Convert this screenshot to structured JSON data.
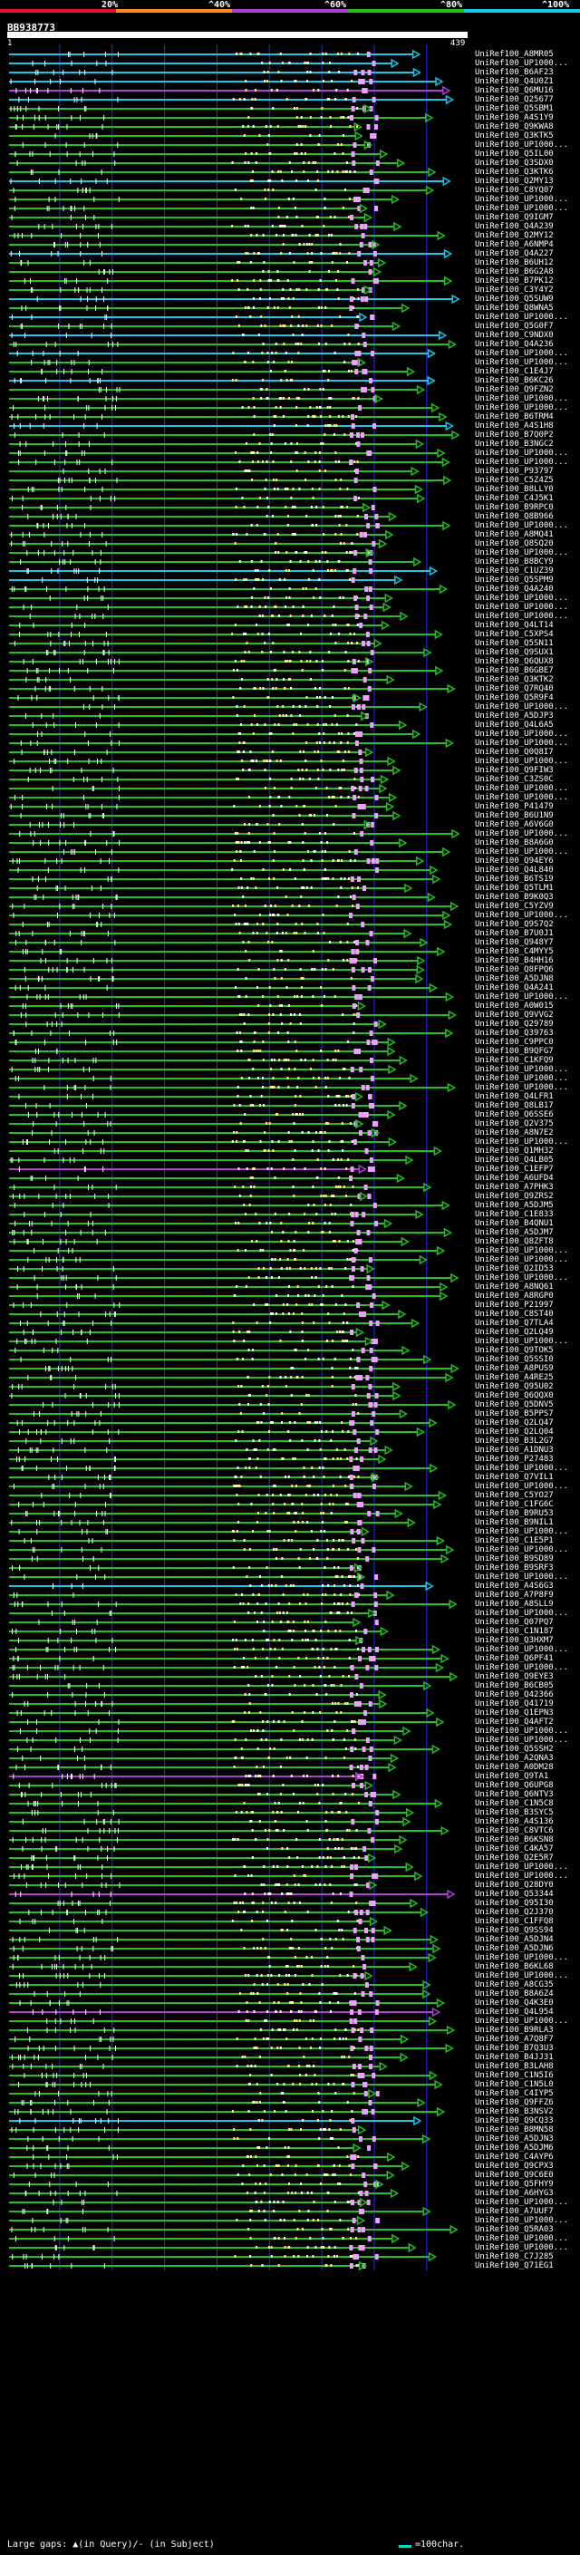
{
  "colors": {
    "background": "#000000",
    "bin1": "#e8102a",
    "bin2": "#ff8c1a",
    "bin3": "#b040d0",
    "bin4": "#22c020",
    "bin5": "#18c8e8",
    "pink": "#f0a0ff",
    "white": "#ffffff"
  },
  "header": {
    "pct_labels": [
      "20%",
      "^40%",
      "^60%",
      "^80%",
      "^100%"
    ],
    "query_id": "BB938773",
    "query_start": "1",
    "query_end": "439"
  },
  "chart_data": {
    "type": "alignment-overview",
    "query_length": 439,
    "hits": [
      {
        "id": "UniRef100_A8MR05",
        "c": 4
      },
      {
        "id": "UniRef100_UP1000...",
        "c": 4
      },
      {
        "id": "UniRef100_B6AF23",
        "c": 4
      },
      {
        "id": "UniRef100_Q4U0Z1",
        "c": 4
      },
      {
        "id": "UniRef100_Q6MU16",
        "c": 5
      },
      {
        "id": "UniRef100_Q25677",
        "c": 4
      },
      {
        "id": "UniRef100_Q5SBM1",
        "c": 3
      },
      {
        "id": "UniRef100_A4S1Y9",
        "c": 3
      },
      {
        "id": "UniRef100_Q9KWA8",
        "c": 3
      },
      {
        "id": "UniRef100_Q3KTK5",
        "c": 3
      },
      {
        "id": "UniRef100_UP1000...",
        "c": 3
      },
      {
        "id": "UniRef100_Q5IL00",
        "c": 3
      },
      {
        "id": "UniRef100_Q3SDX0",
        "c": 3
      },
      {
        "id": "UniRef100_Q3KTK6",
        "c": 3
      },
      {
        "id": "UniRef100_Q2MY13",
        "c": 4
      },
      {
        "id": "UniRef100_C8YQ07",
        "c": 3
      },
      {
        "id": "UniRef100_UP1000...",
        "c": 3
      },
      {
        "id": "UniRef100_UP1000...",
        "c": 3
      },
      {
        "id": "UniRef100_Q9IGM7",
        "c": 3
      },
      {
        "id": "UniRef100_Q4A239",
        "c": 3
      },
      {
        "id": "UniRef100_Q2MY12",
        "c": 3
      },
      {
        "id": "UniRef100_A6NMP4",
        "c": 3
      },
      {
        "id": "UniRef100_Q4A227",
        "c": 4
      },
      {
        "id": "UniRef100_B6UH12",
        "c": 3
      },
      {
        "id": "UniRef100_B6G2A8",
        "c": 3
      },
      {
        "id": "UniRef100_B7PK12",
        "c": 3
      },
      {
        "id": "UniRef100_C3Y4Y2",
        "c": 3
      },
      {
        "id": "UniRef100_Q5SUW9",
        "c": 4
      },
      {
        "id": "UniRef100_Q8WNA5",
        "c": 3
      },
      {
        "id": "UniRef100_UP1000...",
        "c": 4
      },
      {
        "id": "UniRef100_Q5G0F7",
        "c": 3
      },
      {
        "id": "UniRef100_C9NDX0",
        "c": 4
      },
      {
        "id": "UniRef100_Q4A236",
        "c": 3
      },
      {
        "id": "UniRef100_UP1000...",
        "c": 4
      },
      {
        "id": "UniRef100_UP1000...",
        "c": 3
      },
      {
        "id": "UniRef100_C1E4J7",
        "c": 3
      },
      {
        "id": "UniRef100_B6KC26",
        "c": 4
      },
      {
        "id": "UniRef100_Q9FZN2",
        "c": 3
      },
      {
        "id": "UniRef100_UP1000...",
        "c": 3
      },
      {
        "id": "UniRef100_UP1000...",
        "c": 3
      },
      {
        "id": "UniRef100_B6TRM4",
        "c": 3
      },
      {
        "id": "UniRef100_A4S1H8",
        "c": 4
      },
      {
        "id": "UniRef100_B7Q0P2",
        "c": 3
      },
      {
        "id": "UniRef100_B3NGC2",
        "c": 3
      },
      {
        "id": "UniRef100_UP1000...",
        "c": 3
      },
      {
        "id": "UniRef100_UP1000...",
        "c": 3
      },
      {
        "id": "UniRef100_P93797",
        "c": 3
      },
      {
        "id": "UniRef100_C5Z4Z5",
        "c": 3
      },
      {
        "id": "UniRef100_B8LLY0",
        "c": 3
      },
      {
        "id": "UniRef100_C4J5K1",
        "c": 3
      },
      {
        "id": "UniRef100_B9RPC0",
        "c": 3
      },
      {
        "id": "UniRef100_Q8B966",
        "c": 3
      },
      {
        "id": "UniRef100_UP1000...",
        "c": 3
      },
      {
        "id": "UniRef100_A8MQ41",
        "c": 3
      },
      {
        "id": "UniRef100_Q8SQ20",
        "c": 3
      },
      {
        "id": "UniRef100_UP1000...",
        "c": 3
      },
      {
        "id": "UniRef100_B8BCY9",
        "c": 3
      },
      {
        "id": "UniRef100_C1UZ39",
        "c": 4
      },
      {
        "id": "UniRef100_Q5SPM9",
        "c": 4
      },
      {
        "id": "UniRef100_Q4A240",
        "c": 3
      },
      {
        "id": "UniRef100_UP1000...",
        "c": 3
      },
      {
        "id": "UniRef100_UP1000...",
        "c": 3
      },
      {
        "id": "UniRef100_UP1000...",
        "c": 3
      },
      {
        "id": "UniRef100_Q4LT14",
        "c": 3
      },
      {
        "id": "UniRef100_C5XPS4",
        "c": 3
      },
      {
        "id": "UniRef100_Q5SN11",
        "c": 3
      },
      {
        "id": "UniRef100_Q9SUX1",
        "c": 3
      },
      {
        "id": "UniRef100_Q6QUX8",
        "c": 3
      },
      {
        "id": "UniRef100_B6GBE7",
        "c": 3
      },
      {
        "id": "UniRef100_Q3KTK2",
        "c": 3
      },
      {
        "id": "UniRef100_Q7RQ40",
        "c": 3
      },
      {
        "id": "UniRef100_Q5R9F4",
        "c": 3
      },
      {
        "id": "UniRef100_UP1000...",
        "c": 3
      },
      {
        "id": "UniRef100_A5DJP3",
        "c": 3
      },
      {
        "id": "UniRef100_Q4L6A5",
        "c": 3
      },
      {
        "id": "UniRef100_UP1000...",
        "c": 3
      },
      {
        "id": "UniRef100_UP1000...",
        "c": 3
      },
      {
        "id": "UniRef100_Q0Q8I7",
        "c": 3
      },
      {
        "id": "UniRef100_UP1000...",
        "c": 3
      },
      {
        "id": "UniRef100_Q9FIW3",
        "c": 3
      },
      {
        "id": "UniRef100_C3ZS0C",
        "c": 3
      },
      {
        "id": "UniRef100_UP1000...",
        "c": 3
      },
      {
        "id": "UniRef100_UP1000...",
        "c": 3
      },
      {
        "id": "UniRef100_P41479",
        "c": 3
      },
      {
        "id": "UniRef100_B6U1N9",
        "c": 3
      },
      {
        "id": "UniRef100_A6V6G0",
        "c": 3
      },
      {
        "id": "UniRef100_UP1000...",
        "c": 3
      },
      {
        "id": "UniRef100_B8A6G0",
        "c": 3
      },
      {
        "id": "UniRef100_UP1000...",
        "c": 3
      },
      {
        "id": "UniRef100_Q94EY6",
        "c": 3
      },
      {
        "id": "UniRef100_Q4L840",
        "c": 3
      },
      {
        "id": "UniRef100_B6TS19",
        "c": 3
      },
      {
        "id": "UniRef100_Q5TLM1",
        "c": 3
      },
      {
        "id": "UniRef100_B9K0Q3",
        "c": 3
      },
      {
        "id": "UniRef100_C5YZV9",
        "c": 3
      },
      {
        "id": "UniRef100_UP1000...",
        "c": 3
      },
      {
        "id": "UniRef100_Q9S7Q2",
        "c": 3
      },
      {
        "id": "UniRef100_B7U0J1",
        "c": 3
      },
      {
        "id": "UniRef100_Q948Y7",
        "c": 3
      },
      {
        "id": "UniRef100_C4MYY5",
        "c": 3
      },
      {
        "id": "UniRef100_B4HH16",
        "c": 3
      },
      {
        "id": "UniRef100_Q8FPQ6",
        "c": 3
      },
      {
        "id": "UniRef100_A5DJN8",
        "c": 3
      },
      {
        "id": "UniRef100_Q4A241",
        "c": 3
      },
      {
        "id": "UniRef100_UP1000...",
        "c": 3
      },
      {
        "id": "UniRef100_A0W015",
        "c": 3
      },
      {
        "id": "UniRef100_Q9VVG2",
        "c": 3
      },
      {
        "id": "UniRef100_Q29789",
        "c": 3
      },
      {
        "id": "UniRef100_Q39763",
        "c": 3
      },
      {
        "id": "UniRef100_C9PPC0",
        "c": 3
      },
      {
        "id": "UniRef100_B9QFG7",
        "c": 3
      },
      {
        "id": "UniRef100_C1KFQ9",
        "c": 3
      },
      {
        "id": "UniRef100_UP1000...",
        "c": 3
      },
      {
        "id": "UniRef100_UP1000...",
        "c": 3
      },
      {
        "id": "UniRef100_UP1000...",
        "c": 3
      },
      {
        "id": "UniRef100_Q4LFR1",
        "c": 3
      },
      {
        "id": "UniRef100_Q8LB17",
        "c": 3
      },
      {
        "id": "UniRef100_Q6SSE6",
        "c": 3
      },
      {
        "id": "UniRef100_Q2V375",
        "c": 3
      },
      {
        "id": "UniRef100_A8N7E2",
        "c": 3
      },
      {
        "id": "UniRef100_UP1000...",
        "c": 3
      },
      {
        "id": "UniRef100_Q1MH32",
        "c": 3
      },
      {
        "id": "UniRef100_Q4LB05",
        "c": 3
      },
      {
        "id": "UniRef100_C1EFP7",
        "c": 2
      },
      {
        "id": "UniRef100_A6UFD4",
        "c": 3
      },
      {
        "id": "UniRef100_A7PHK3",
        "c": 3
      },
      {
        "id": "UniRef100_Q9ZRS2",
        "c": 3
      },
      {
        "id": "UniRef100_A5DJM5",
        "c": 3
      },
      {
        "id": "UniRef100_C1E833",
        "c": 3
      },
      {
        "id": "UniRef100_B4QNU1",
        "c": 3
      },
      {
        "id": "UniRef100_A5DJM7",
        "c": 3
      },
      {
        "id": "UniRef100_Q8ZFT8",
        "c": 3
      },
      {
        "id": "UniRef100_UP1000...",
        "c": 3
      },
      {
        "id": "UniRef100_UP1000...",
        "c": 3
      },
      {
        "id": "UniRef100_Q2ID53",
        "c": 3
      },
      {
        "id": "UniRef100_UP1000...",
        "c": 3
      },
      {
        "id": "UniRef100_A8NQ61",
        "c": 3
      },
      {
        "id": "UniRef100_A8RGP0",
        "c": 3
      },
      {
        "id": "UniRef100_P21997",
        "c": 3
      },
      {
        "id": "UniRef100_C8ST40",
        "c": 3
      },
      {
        "id": "UniRef100_Q7TLA4",
        "c": 3
      },
      {
        "id": "UniRef100_Q2LQ49",
        "c": 3
      },
      {
        "id": "UniRef100_UP1000...",
        "c": 3
      },
      {
        "id": "UniRef100_Q9TOK5",
        "c": 3
      },
      {
        "id": "UniRef100_Q5SSI0",
        "c": 3
      },
      {
        "id": "UniRef100_A8PUS9",
        "c": 3
      },
      {
        "id": "UniRef100_A4RE25",
        "c": 3
      },
      {
        "id": "UniRef100_Q95U02",
        "c": 3
      },
      {
        "id": "UniRef100_Q6QQX0",
        "c": 3
      },
      {
        "id": "UniRef100_Q5DNV5",
        "c": 3
      },
      {
        "id": "UniRef100_B5PPS7",
        "c": 3
      },
      {
        "id": "UniRef100_Q2LQ47",
        "c": 3
      },
      {
        "id": "UniRef100_Q2LQ04",
        "c": 3
      },
      {
        "id": "UniRef100_B3L2G7",
        "c": 3
      },
      {
        "id": "UniRef100_A1DNU3",
        "c": 3
      },
      {
        "id": "UniRef100_P27483",
        "c": 3
      },
      {
        "id": "UniRef100_UP1000...",
        "c": 3
      },
      {
        "id": "UniRef100_Q7VIL1",
        "c": 3
      },
      {
        "id": "UniRef100_UP1000...",
        "c": 3
      },
      {
        "id": "UniRef100_C5YO27",
        "c": 3
      },
      {
        "id": "UniRef100_C1FG6C",
        "c": 3
      },
      {
        "id": "UniRef100_B9RU53",
        "c": 3
      },
      {
        "id": "UniRef100_B9NIL1",
        "c": 3
      },
      {
        "id": "UniRef100_UP1000...",
        "c": 3
      },
      {
        "id": "UniRef100_C1E5P1",
        "c": 3
      },
      {
        "id": "UniRef100_UP1000...",
        "c": 3
      },
      {
        "id": "UniRef100_B9SD89",
        "c": 3
      },
      {
        "id": "UniRef100_B9SRF3",
        "c": 3
      },
      {
        "id": "UniRef100_UP1000...",
        "c": 3
      },
      {
        "id": "UniRef100_A4S6G3",
        "c": 4
      },
      {
        "id": "UniRef100_A7P8F9",
        "c": 3
      },
      {
        "id": "UniRef100_A8SLL9",
        "c": 3
      },
      {
        "id": "UniRef100_UP1000...",
        "c": 3
      },
      {
        "id": "UniRef100_Q07PQ7",
        "c": 3
      },
      {
        "id": "UniRef100_C1N187",
        "c": 3
      },
      {
        "id": "UniRef100_Q3HXM7",
        "c": 3
      },
      {
        "id": "UniRef100_UP1000...",
        "c": 3
      },
      {
        "id": "UniRef100_Q6PF41",
        "c": 3
      },
      {
        "id": "UniRef100_UP1000...",
        "c": 3
      },
      {
        "id": "UniRef100_Q9EYE3",
        "c": 3
      },
      {
        "id": "UniRef100_B6CB05",
        "c": 3
      },
      {
        "id": "UniRef100_Q42366",
        "c": 3
      },
      {
        "id": "UniRef100_Q41719",
        "c": 3
      },
      {
        "id": "UniRef100_Q1EPN3",
        "c": 3
      },
      {
        "id": "UniRef100_Q4AFT2",
        "c": 3
      },
      {
        "id": "UniRef100_UP1000...",
        "c": 3
      },
      {
        "id": "UniRef100_UP1000...",
        "c": 3
      },
      {
        "id": "UniRef100_Q5SSH2",
        "c": 3
      },
      {
        "id": "UniRef100_A2QNA3",
        "c": 3
      },
      {
        "id": "UniRef100_A0DM28",
        "c": 3
      },
      {
        "id": "UniRef100_Q9TA1",
        "c": 2
      },
      {
        "id": "UniRef100_Q6UPG8",
        "c": 3
      },
      {
        "id": "UniRef100_Q6NTV3",
        "c": 3
      },
      {
        "id": "UniRef100_C1N5C8",
        "c": 3
      },
      {
        "id": "UniRef100_B3SYC5",
        "c": 3
      },
      {
        "id": "UniRef100_A4S136",
        "c": 3
      },
      {
        "id": "UniRef100_C8VTC6",
        "c": 3
      },
      {
        "id": "UniRef100_B6KSN8",
        "c": 3
      },
      {
        "id": "UniRef100_C4KA57",
        "c": 3
      },
      {
        "id": "UniRef100_Q2E5R7",
        "c": 3
      },
      {
        "id": "UniRef100_UP1000...",
        "c": 3
      },
      {
        "id": "UniRef100_UP1000...",
        "c": 3
      },
      {
        "id": "UniRef100_Q28DY0",
        "c": 3
      },
      {
        "id": "UniRef100_Q53344",
        "c": 2
      },
      {
        "id": "UniRef100_Q95I30",
        "c": 3
      },
      {
        "id": "UniRef100_Q2J370",
        "c": 3
      },
      {
        "id": "UniRef100_C1FFQ8",
        "c": 3
      },
      {
        "id": "UniRef100_Q9SS94",
        "c": 3
      },
      {
        "id": "UniRef100_A5DJN4",
        "c": 3
      },
      {
        "id": "UniRef100_A5DJN6",
        "c": 3
      },
      {
        "id": "UniRef100_UP1000...",
        "c": 3
      },
      {
        "id": "UniRef100_B6KL68",
        "c": 3
      },
      {
        "id": "UniRef100_UP1000...",
        "c": 3
      },
      {
        "id": "UniRef100_A8CG35",
        "c": 3
      },
      {
        "id": "UniRef100_B8A6Z4",
        "c": 3
      },
      {
        "id": "UniRef100_Q4K3E0",
        "c": 3
      },
      {
        "id": "UniRef100_Q4L954",
        "c": 2
      },
      {
        "id": "UniRef100_UP1000...",
        "c": 3
      },
      {
        "id": "UniRef100_B9RLA3",
        "c": 3
      },
      {
        "id": "UniRef100_A7Q8F7",
        "c": 3
      },
      {
        "id": "UniRef100_B7Q3U3",
        "c": 3
      },
      {
        "id": "UniRef100_B4JJ31",
        "c": 3
      },
      {
        "id": "UniRef100_B3LAH8",
        "c": 3
      },
      {
        "id": "UniRef100_C1N5I6",
        "c": 3
      },
      {
        "id": "UniRef100_C1N5L0",
        "c": 3
      },
      {
        "id": "UniRef100_C4IYP5",
        "c": 3
      },
      {
        "id": "UniRef100_Q9FFZ6",
        "c": 3
      },
      {
        "id": "UniRef100_B3NSV2",
        "c": 3
      },
      {
        "id": "UniRef100_Q9CQ33",
        "c": 4
      },
      {
        "id": "UniRef100_B8MN58",
        "c": 3
      },
      {
        "id": "UniRef100_A5DJN3",
        "c": 3
      },
      {
        "id": "UniRef100_A5DJM6",
        "c": 3
      },
      {
        "id": "UniRef100_C4AYP6",
        "c": 3
      },
      {
        "id": "UniRef100_Q9CPX3",
        "c": 3
      },
      {
        "id": "UniRef100_Q9C6E0",
        "c": 3
      },
      {
        "id": "UniRef100_Q5FHY9",
        "c": 3
      },
      {
        "id": "UniRef100_A6HYG3",
        "c": 3
      },
      {
        "id": "UniRef100_UP1000...",
        "c": 3
      },
      {
        "id": "UniRef100_A7UUF7",
        "c": 3
      },
      {
        "id": "UniRef100_UP1000...",
        "c": 3
      },
      {
        "id": "UniRef100_Q5RA03",
        "c": 3
      },
      {
        "id": "UniRef100_UP1000...",
        "c": 3
      },
      {
        "id": "UniRef100_UP1000...",
        "c": 3
      },
      {
        "id": "UniRef100_C7J285",
        "c": 3
      },
      {
        "id": "UniRef100_Q71EG1",
        "c": 3
      }
    ]
  },
  "legend": {
    "gaps_text": "Large gaps: ▲(in Query)/- (in Subject)",
    "scale_text": "=100char."
  }
}
